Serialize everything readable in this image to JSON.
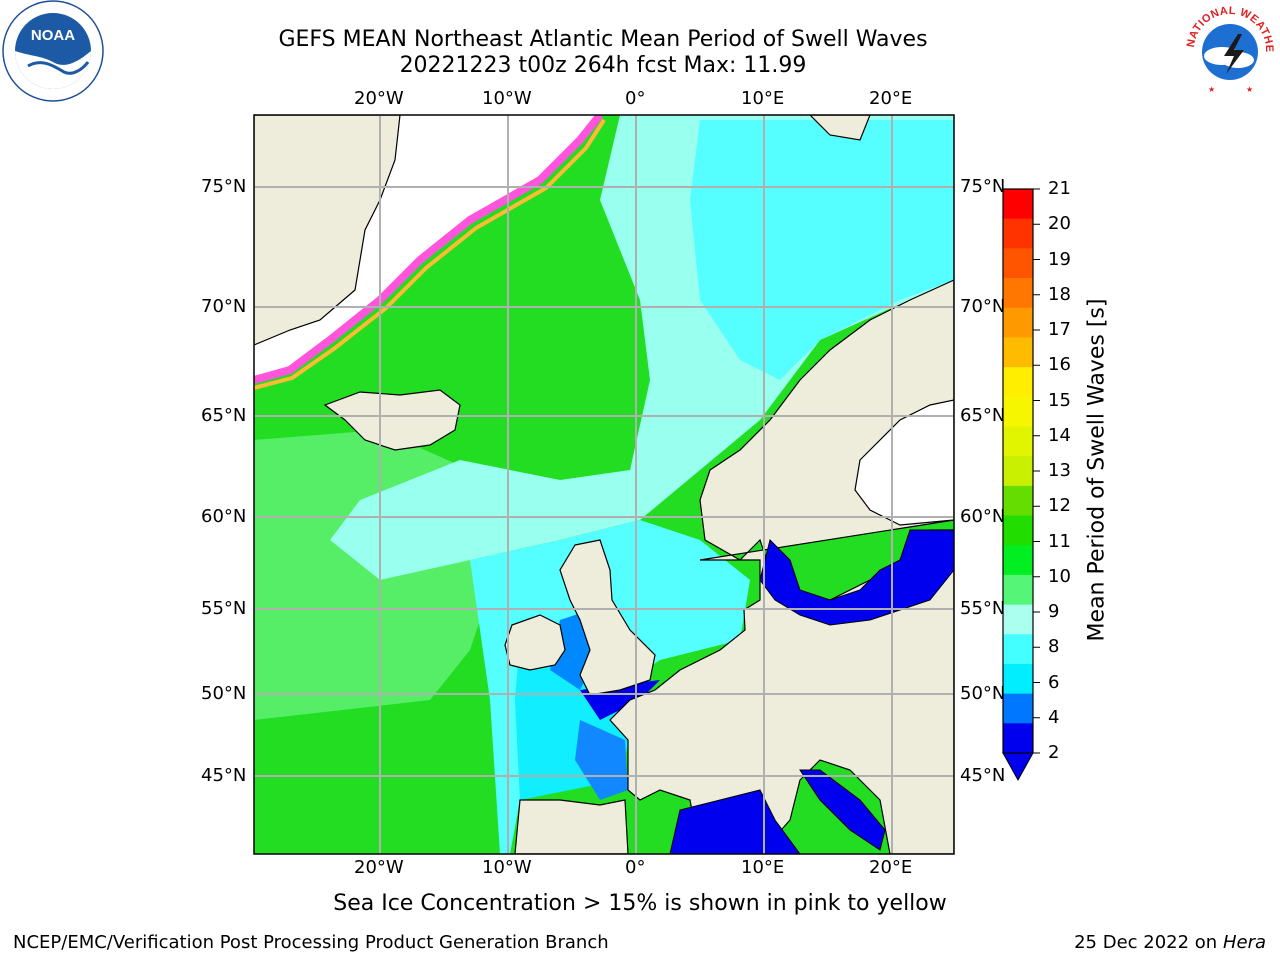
{
  "title": {
    "line1": "GEFS MEAN Northeast Atlantic Mean Period of Swell Waves",
    "line2": "20221223 t00z 264h fcst   Max: 11.99"
  },
  "logos": {
    "left": "NOAA",
    "right": "NATIONAL WEATHER SERVICE"
  },
  "map": {
    "lon_ticks_top": [
      "20°W",
      "10°W",
      "0°",
      "10°E",
      "20°E"
    ],
    "lon_ticks_bottom": [
      "20°W",
      "10°W",
      "0°",
      "10°E",
      "20°E"
    ],
    "lat_ticks_left": [
      "75°N",
      "70°N",
      "65°N",
      "60°N",
      "55°N",
      "50°N",
      "45°N"
    ],
    "lat_ticks_right": [
      "75°N",
      "70°N",
      "65°N",
      "60°N",
      "55°N",
      "50°N",
      "45°N"
    ],
    "colors": {
      "land": "#eeeddc",
      "ice": "#ffffff",
      "grid": "#b0b0b0"
    }
  },
  "colorbar": {
    "title": "Mean Period of Swell Waves [s]",
    "labels": [
      "21",
      "20",
      "19",
      "18",
      "17",
      "16",
      "15",
      "14",
      "13",
      "12",
      "11",
      "10",
      "9",
      "8",
      "6",
      "4",
      "2"
    ],
    "colors": [
      "#ff0000",
      "#ff3300",
      "#ff5500",
      "#ff7700",
      "#ff9900",
      "#ffbb00",
      "#ffee00",
      "#f6f600",
      "#e1f500",
      "#c8f000",
      "#66dd00",
      "#22dd00",
      "#00ee22",
      "#55f577",
      "#aaffee",
      "#44ffff",
      "#00eeff",
      "#0077ff",
      "#0000ee"
    ]
  },
  "note": "Sea Ice Concentration > 15% is shown in pink to yellow",
  "footer": {
    "left": "NCEP/EMC/Verification Post Processing Product Generation Branch",
    "date": "25 Dec 2022 on",
    "host": "Hera"
  }
}
